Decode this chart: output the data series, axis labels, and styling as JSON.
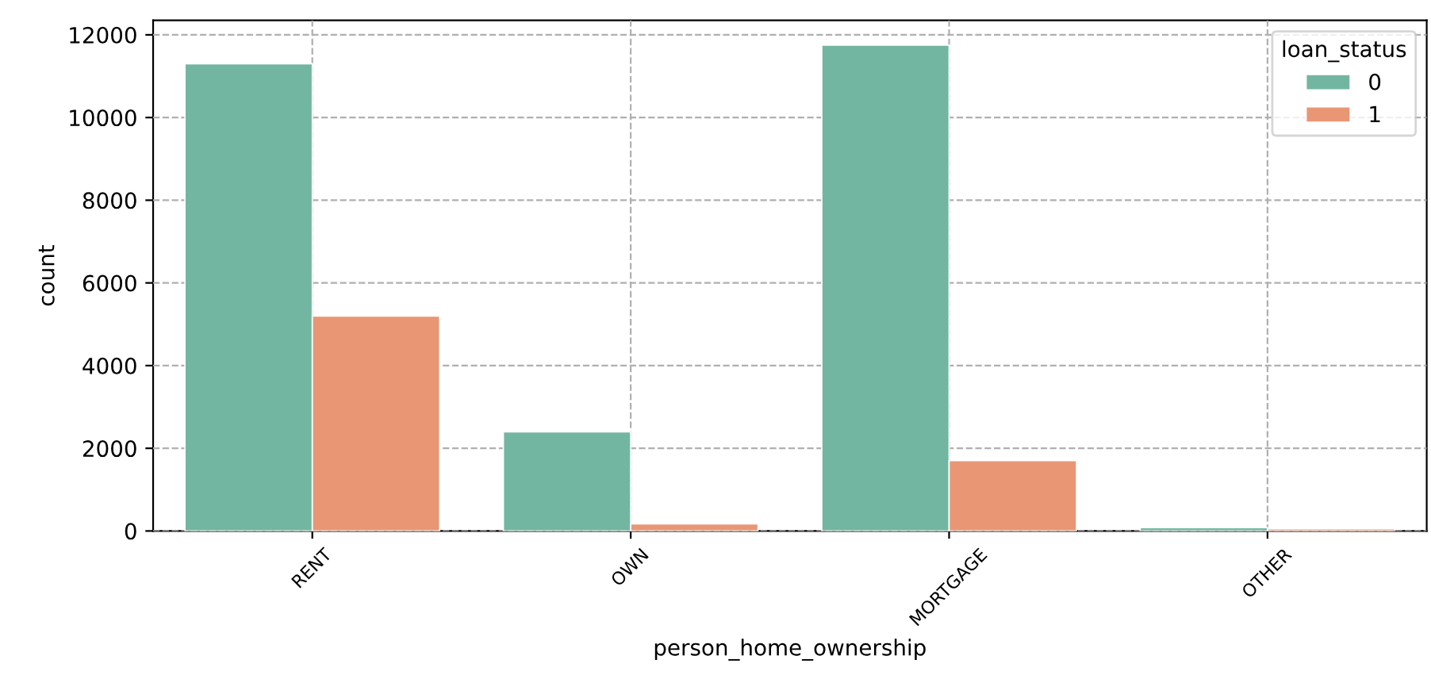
{
  "chart_data": {
    "type": "bar",
    "xlabel": "person_home_ownership",
    "ylabel": "count",
    "legend_title": "loan_status",
    "categories": [
      "RENT",
      "OWN",
      "MORTGAGE",
      "OTHER"
    ],
    "series": [
      {
        "name": "0",
        "color": "#72b6a1",
        "values": [
          11300,
          2400,
          11750,
          80
        ]
      },
      {
        "name": "1",
        "color": "#e99675",
        "values": [
          5200,
          170,
          1700,
          50
        ]
      }
    ],
    "ylim": [
      0,
      12350
    ],
    "yticks": [
      0,
      2000,
      4000,
      6000,
      8000,
      10000,
      12000
    ],
    "grid": true,
    "legend": "top right"
  }
}
